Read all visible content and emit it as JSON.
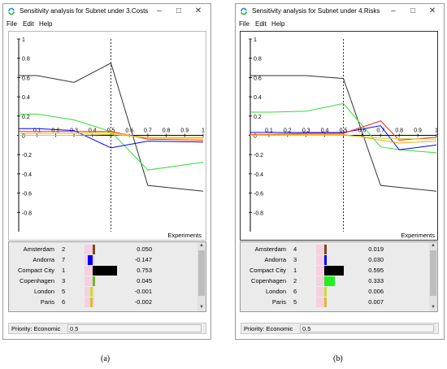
{
  "windows": [
    {
      "id": "a",
      "title": "Sensitivity analysis for Subnet under 3.Costs",
      "menu": [
        "File",
        "Edit",
        "Help"
      ],
      "caption": "(a)",
      "priority_label": "Priority: Economic",
      "priority_value": "0.5",
      "xlabel": "Experiments",
      "rows": [
        {
          "name": "Amsterdam",
          "rank": "2",
          "value": "0.050",
          "color": "#7a4a20"
        },
        {
          "name": "Andorra",
          "rank": "7",
          "value": "-0.147",
          "color": "#0000ff"
        },
        {
          "name": "Compact City",
          "rank": "1",
          "value": "0.753",
          "color": "#000000"
        },
        {
          "name": "Copenhagen",
          "rank": "3",
          "value": "0.045",
          "color": "#66bb22"
        },
        {
          "name": "London",
          "rank": "5",
          "value": "-0.001",
          "color": "#ccdd33"
        },
        {
          "name": "Paris",
          "rank": "6",
          "value": "-0.002",
          "color": "#ddbb33"
        }
      ]
    },
    {
      "id": "b",
      "title": "Sensitivity analysis for Subnet under 4.Risks",
      "menu": [
        "File",
        "Edit",
        "Help"
      ],
      "caption": "(b)",
      "priority_label": "Priority: Economic",
      "priority_value": "0.5",
      "xlabel": "Experiments",
      "rows": [
        {
          "name": "Amsterdam",
          "rank": "4",
          "value": "0.019",
          "color": "#7a4a20"
        },
        {
          "name": "Andorra",
          "rank": "3",
          "value": "0.030",
          "color": "#0000ff"
        },
        {
          "name": "Compact City",
          "rank": "1",
          "value": "0.595",
          "color": "#000000"
        },
        {
          "name": "Copenhagen",
          "rank": "2",
          "value": "0.333",
          "color": "#22ee22"
        },
        {
          "name": "London",
          "rank": "6",
          "value": "0.006",
          "color": "#ccdd33"
        },
        {
          "name": "Paris",
          "rank": "5",
          "value": "0.007",
          "color": "#ddbb33"
        }
      ]
    }
  ],
  "chart_data": [
    {
      "type": "line",
      "xlim": [
        0,
        1
      ],
      "ylim": [
        -1,
        1
      ],
      "xticks": [
        "0.1",
        "0.2",
        "0.3",
        "0.4",
        "0.5",
        "0.6",
        "0.7",
        "0.8",
        "0.9",
        "1"
      ],
      "yticks": [
        "1",
        "0.8",
        "0.6",
        "0.4",
        "0.2",
        "0",
        "-0.2",
        "-0.4",
        "-0.6",
        "-0.8"
      ],
      "xlabel": "Experiments",
      "marker_x": 0.5,
      "series": [
        {
          "color": "#333333",
          "x": [
            0,
            0.1,
            0.3,
            0.5,
            0.7,
            1
          ],
          "y": [
            0.62,
            0.62,
            0.55,
            0.75,
            -0.52,
            -0.58
          ]
        },
        {
          "color": "#33dd33",
          "x": [
            0,
            0.1,
            0.3,
            0.5,
            0.7,
            1
          ],
          "y": [
            0.22,
            0.22,
            0.16,
            0.04,
            -0.36,
            -0.28
          ]
        },
        {
          "color": "#0000ff",
          "x": [
            0,
            0.1,
            0.3,
            0.5,
            0.7,
            1
          ],
          "y": [
            0.07,
            0.07,
            0.05,
            -0.13,
            -0.06,
            -0.07
          ]
        },
        {
          "color": "#ff2222",
          "x": [
            0,
            0.1,
            0.3,
            0.5,
            0.7,
            1
          ],
          "y": [
            0.04,
            0.04,
            0.04,
            0.04,
            -0.04,
            -0.05
          ]
        },
        {
          "color": "#ffaa00",
          "x": [
            0,
            0.1,
            0.3,
            0.5,
            0.7,
            1
          ],
          "y": [
            0.02,
            0.02,
            0.02,
            0.03,
            -0.03,
            -0.03
          ]
        },
        {
          "color": "#cccc33",
          "x": [
            0,
            0.1,
            0.3,
            0.5,
            0.7,
            1
          ],
          "y": [
            0.0,
            0.0,
            0.0,
            0.01,
            -0.02,
            -0.02
          ]
        }
      ]
    },
    {
      "type": "line",
      "xlim": [
        0,
        1
      ],
      "ylim": [
        -1,
        1
      ],
      "xticks": [
        "0.1",
        "0.2",
        "0.3",
        "0.4",
        "0.5",
        "0.6",
        "0.7",
        "0.8",
        "0.9",
        "1"
      ],
      "yticks": [
        "1",
        "0.8",
        "0.6",
        "0.4",
        "0.2",
        "0",
        "-0.2",
        "-0.4",
        "-0.6",
        "-0.8"
      ],
      "xlabel": "Experiments",
      "marker_x": 0.5,
      "series": [
        {
          "color": "#333333",
          "x": [
            0,
            0.1,
            0.3,
            0.5,
            0.7,
            1
          ],
          "y": [
            0.62,
            0.62,
            0.62,
            0.59,
            -0.52,
            -0.58
          ]
        },
        {
          "color": "#33dd33",
          "x": [
            0,
            0.1,
            0.3,
            0.5,
            0.7,
            0.8,
            1
          ],
          "y": [
            0.24,
            0.24,
            0.25,
            0.33,
            -0.12,
            -0.15,
            -0.18
          ]
        },
        {
          "color": "#0000ff",
          "x": [
            0,
            0.1,
            0.3,
            0.5,
            0.7,
            0.8,
            1
          ],
          "y": [
            0.03,
            0.03,
            0.03,
            0.03,
            0.1,
            -0.15,
            -0.1
          ]
        },
        {
          "color": "#ff2222",
          "x": [
            0,
            0.1,
            0.3,
            0.5,
            0.7,
            0.8,
            1
          ],
          "y": [
            0.01,
            0.01,
            0.02,
            0.02,
            0.15,
            -0.05,
            -0.02
          ]
        },
        {
          "color": "#ffaa00",
          "x": [
            0,
            0.1,
            0.3,
            0.5,
            0.7,
            0.8,
            1
          ],
          "y": [
            0.005,
            0.005,
            0.01,
            0.01,
            -0.05,
            -0.08,
            -0.06
          ]
        },
        {
          "color": "#cccc33",
          "x": [
            0,
            0.1,
            0.3,
            0.5,
            0.7,
            1
          ],
          "y": [
            0.0,
            0.0,
            0.0,
            0.0,
            -0.03,
            -0.04
          ]
        }
      ]
    }
  ]
}
